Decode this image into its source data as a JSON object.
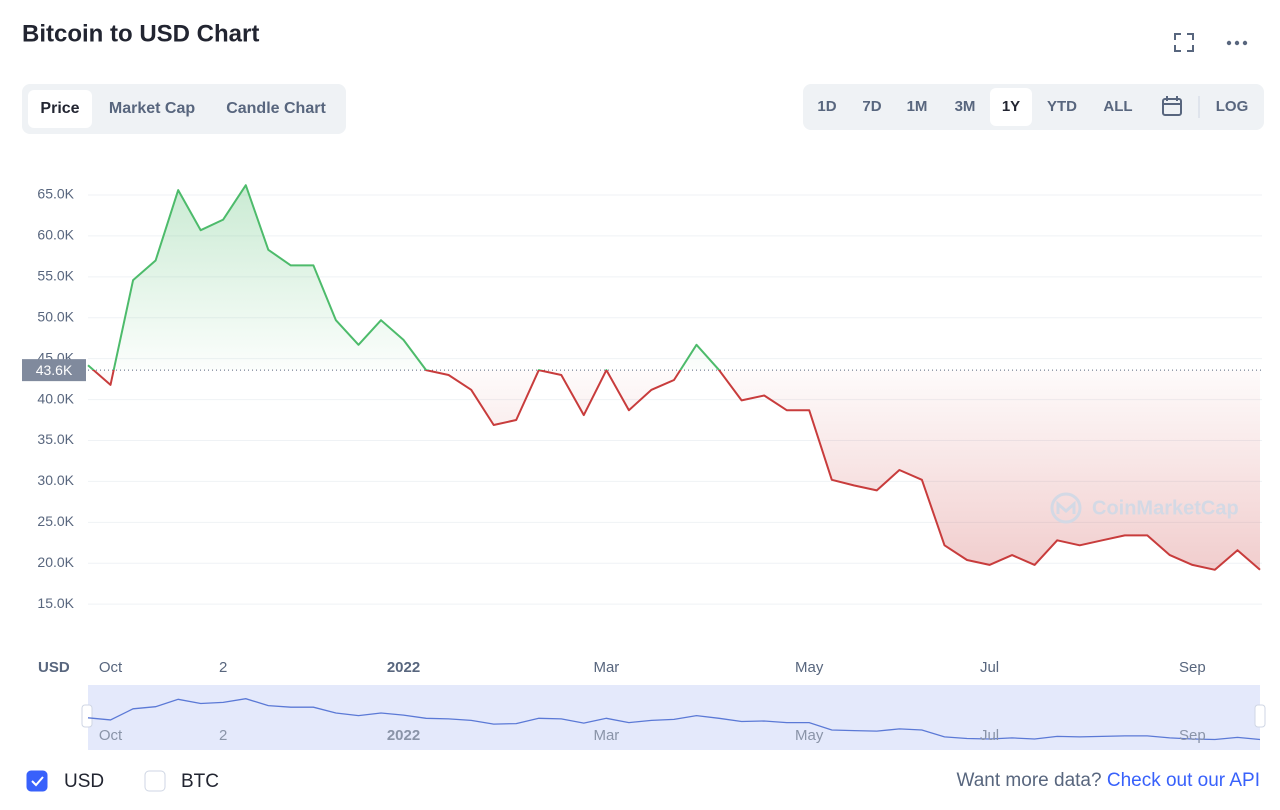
{
  "chart_data": {
    "type": "line",
    "title": "Bitcoin to USD Chart",
    "categories": [
      null,
      "Oct",
      null,
      null,
      null,
      null,
      "2",
      null,
      null,
      null,
      null,
      null,
      null,
      null,
      "2022",
      null,
      null,
      null,
      null,
      null,
      null,
      null,
      null,
      "Mar",
      null,
      null,
      null,
      null,
      null,
      null,
      null,
      null,
      "May",
      null,
      null,
      null,
      null,
      null,
      null,
      null,
      "Jul",
      null,
      null,
      null,
      null,
      null,
      null,
      null,
      null,
      "Sep",
      null,
      null,
      null
    ],
    "values": [
      44200,
      41800,
      54600,
      57000,
      65600,
      60700,
      62000,
      66200,
      58300,
      56400,
      56400,
      49700,
      46700,
      49700,
      47300,
      43600,
      43000,
      41200,
      36900,
      37500,
      43600,
      43000,
      38100,
      43600,
      38700,
      41200,
      42400,
      46700,
      43600,
      39900,
      40500,
      38700,
      38700,
      30200,
      29500,
      28900,
      31400,
      30200,
      22200,
      20400,
      19800,
      21000,
      19800,
      22800,
      22200,
      22800,
      23400,
      23400,
      21000,
      19800,
      19200,
      21600,
      19200
    ],
    "up_color": "#4dbb6b",
    "down_color": "#c83c3c",
    "navigator_color": "#5b79d6",
    "current_price": {
      "value": 43600,
      "label": "43.6K"
    },
    "ylabel": "USD",
    "ylim": [
      9400,
      70500
    ],
    "yticks": [
      {
        "value": 15000,
        "label": "15.0K"
      },
      {
        "value": 20000,
        "label": "20.0K"
      },
      {
        "value": 25000,
        "label": "25.0K"
      },
      {
        "value": 30000,
        "label": "30.0K"
      },
      {
        "value": 35000,
        "label": "35.0K"
      },
      {
        "value": 40000,
        "label": "40.0K"
      },
      {
        "value": 45000,
        "label": "45.0K"
      },
      {
        "value": 50000,
        "label": "50.0K"
      },
      {
        "value": 55000,
        "label": "55.0K"
      },
      {
        "value": 60000,
        "label": "60.0K"
      },
      {
        "value": 65000,
        "label": "65.0K"
      }
    ],
    "grid": true
  },
  "ui": {
    "tabs": [
      "Price",
      "Market Cap",
      "Candle Chart"
    ],
    "active_tab": 0,
    "ranges": [
      "1D",
      "7D",
      "1M",
      "3M",
      "1Y",
      "YTD",
      "ALL"
    ],
    "active_range": 4,
    "log": "LOG",
    "watermark": "CoinMarketCap",
    "currencies": [
      {
        "label": "USD",
        "checked": true
      },
      {
        "label": "BTC",
        "checked": false
      }
    ],
    "footer": {
      "prompt": "Want more data?",
      "link": "Check out our API"
    }
  }
}
